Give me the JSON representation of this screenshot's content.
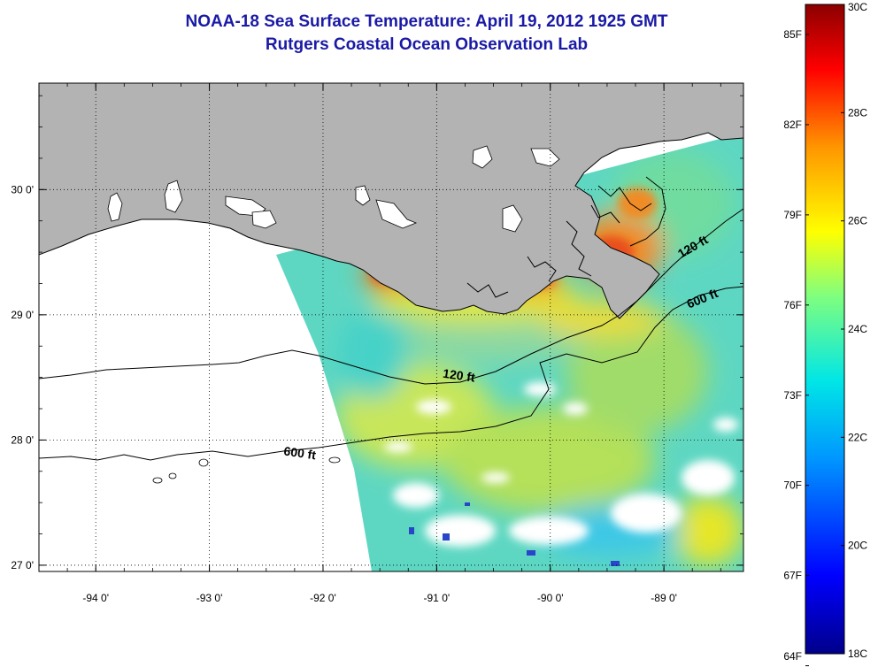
{
  "title": {
    "line1": "NOAA-18 Sea Surface Temperature:  April 19, 2012 1925 GMT",
    "line2": "Rutgers Coastal Ocean Observation Lab"
  },
  "map": {
    "lon_range": [
      -94.5,
      -88.3
    ],
    "lat_range": [
      26.95,
      30.85
    ],
    "lon_ticks": [
      {
        "value": -94,
        "label": "-94 0'"
      },
      {
        "value": -93,
        "label": "-93 0'"
      },
      {
        "value": -92,
        "label": "-92 0'"
      },
      {
        "value": -91,
        "label": "-91 0'"
      },
      {
        "value": -90,
        "label": "-90 0'"
      },
      {
        "value": -89,
        "label": "-89 0'"
      }
    ],
    "lat_ticks": [
      {
        "value": 30,
        "label": "30 0'"
      },
      {
        "value": 29,
        "label": "29 0'"
      },
      {
        "value": 28,
        "label": "28 0'"
      },
      {
        "value": 27,
        "label": "27 0'"
      }
    ],
    "contour_labels": [
      {
        "text": "120 ft",
        "lon": -90.95,
        "lat": 28.5
      },
      {
        "text": "600 ft",
        "lon": -92.35,
        "lat": 27.88
      },
      {
        "text": "120 ft",
        "lon": -88.85,
        "lat": 29.45
      },
      {
        "text": "600 ft",
        "lon": -88.78,
        "lat": 29.05
      }
    ],
    "colors": {
      "land": "#b3b3b3",
      "ocean_base": "#33cccc",
      "no_data": "#ffffff",
      "contour": "#000000"
    }
  },
  "colorbar": {
    "celsius_range": [
      18,
      30
    ],
    "fahrenheit_labels": [
      "85F",
      "82F",
      "79F",
      "76F",
      "73F",
      "70F",
      "67F",
      "64F"
    ],
    "celsius_labels": [
      "30C",
      "28C",
      "26C",
      "24C",
      "22C",
      "20C",
      "18C"
    ]
  }
}
